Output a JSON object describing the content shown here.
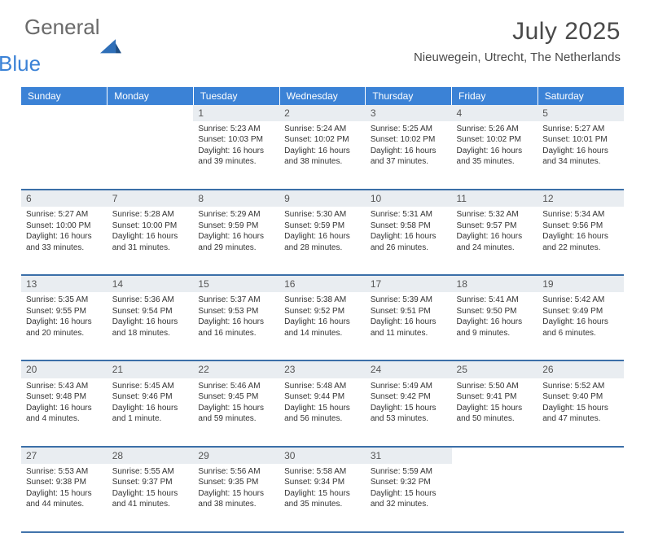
{
  "brand": {
    "word1": "General",
    "word2": "Blue",
    "logo_color": "#2f6fb8"
  },
  "title": "July 2025",
  "location": "Nieuwegein, Utrecht, The Netherlands",
  "colors": {
    "header_bg": "#3b82d6",
    "header_text": "#ffffff",
    "daynum_bg": "#e9edf1",
    "row_border": "#3b6fa8",
    "text": "#333333"
  },
  "weekdays": [
    "Sunday",
    "Monday",
    "Tuesday",
    "Wednesday",
    "Thursday",
    "Friday",
    "Saturday"
  ],
  "weeks": [
    [
      null,
      null,
      {
        "n": "1",
        "sunrise": "5:23 AM",
        "sunset": "10:03 PM",
        "daylight": "16 hours and 39 minutes."
      },
      {
        "n": "2",
        "sunrise": "5:24 AM",
        "sunset": "10:02 PM",
        "daylight": "16 hours and 38 minutes."
      },
      {
        "n": "3",
        "sunrise": "5:25 AM",
        "sunset": "10:02 PM",
        "daylight": "16 hours and 37 minutes."
      },
      {
        "n": "4",
        "sunrise": "5:26 AM",
        "sunset": "10:02 PM",
        "daylight": "16 hours and 35 minutes."
      },
      {
        "n": "5",
        "sunrise": "5:27 AM",
        "sunset": "10:01 PM",
        "daylight": "16 hours and 34 minutes."
      }
    ],
    [
      {
        "n": "6",
        "sunrise": "5:27 AM",
        "sunset": "10:00 PM",
        "daylight": "16 hours and 33 minutes."
      },
      {
        "n": "7",
        "sunrise": "5:28 AM",
        "sunset": "10:00 PM",
        "daylight": "16 hours and 31 minutes."
      },
      {
        "n": "8",
        "sunrise": "5:29 AM",
        "sunset": "9:59 PM",
        "daylight": "16 hours and 29 minutes."
      },
      {
        "n": "9",
        "sunrise": "5:30 AM",
        "sunset": "9:59 PM",
        "daylight": "16 hours and 28 minutes."
      },
      {
        "n": "10",
        "sunrise": "5:31 AM",
        "sunset": "9:58 PM",
        "daylight": "16 hours and 26 minutes."
      },
      {
        "n": "11",
        "sunrise": "5:32 AM",
        "sunset": "9:57 PM",
        "daylight": "16 hours and 24 minutes."
      },
      {
        "n": "12",
        "sunrise": "5:34 AM",
        "sunset": "9:56 PM",
        "daylight": "16 hours and 22 minutes."
      }
    ],
    [
      {
        "n": "13",
        "sunrise": "5:35 AM",
        "sunset": "9:55 PM",
        "daylight": "16 hours and 20 minutes."
      },
      {
        "n": "14",
        "sunrise": "5:36 AM",
        "sunset": "9:54 PM",
        "daylight": "16 hours and 18 minutes."
      },
      {
        "n": "15",
        "sunrise": "5:37 AM",
        "sunset": "9:53 PM",
        "daylight": "16 hours and 16 minutes."
      },
      {
        "n": "16",
        "sunrise": "5:38 AM",
        "sunset": "9:52 PM",
        "daylight": "16 hours and 14 minutes."
      },
      {
        "n": "17",
        "sunrise": "5:39 AM",
        "sunset": "9:51 PM",
        "daylight": "16 hours and 11 minutes."
      },
      {
        "n": "18",
        "sunrise": "5:41 AM",
        "sunset": "9:50 PM",
        "daylight": "16 hours and 9 minutes."
      },
      {
        "n": "19",
        "sunrise": "5:42 AM",
        "sunset": "9:49 PM",
        "daylight": "16 hours and 6 minutes."
      }
    ],
    [
      {
        "n": "20",
        "sunrise": "5:43 AM",
        "sunset": "9:48 PM",
        "daylight": "16 hours and 4 minutes."
      },
      {
        "n": "21",
        "sunrise": "5:45 AM",
        "sunset": "9:46 PM",
        "daylight": "16 hours and 1 minute."
      },
      {
        "n": "22",
        "sunrise": "5:46 AM",
        "sunset": "9:45 PM",
        "daylight": "15 hours and 59 minutes."
      },
      {
        "n": "23",
        "sunrise": "5:48 AM",
        "sunset": "9:44 PM",
        "daylight": "15 hours and 56 minutes."
      },
      {
        "n": "24",
        "sunrise": "5:49 AM",
        "sunset": "9:42 PM",
        "daylight": "15 hours and 53 minutes."
      },
      {
        "n": "25",
        "sunrise": "5:50 AM",
        "sunset": "9:41 PM",
        "daylight": "15 hours and 50 minutes."
      },
      {
        "n": "26",
        "sunrise": "5:52 AM",
        "sunset": "9:40 PM",
        "daylight": "15 hours and 47 minutes."
      }
    ],
    [
      {
        "n": "27",
        "sunrise": "5:53 AM",
        "sunset": "9:38 PM",
        "daylight": "15 hours and 44 minutes."
      },
      {
        "n": "28",
        "sunrise": "5:55 AM",
        "sunset": "9:37 PM",
        "daylight": "15 hours and 41 minutes."
      },
      {
        "n": "29",
        "sunrise": "5:56 AM",
        "sunset": "9:35 PM",
        "daylight": "15 hours and 38 minutes."
      },
      {
        "n": "30",
        "sunrise": "5:58 AM",
        "sunset": "9:34 PM",
        "daylight": "15 hours and 35 minutes."
      },
      {
        "n": "31",
        "sunrise": "5:59 AM",
        "sunset": "9:32 PM",
        "daylight": "15 hours and 32 minutes."
      },
      null,
      null
    ]
  ],
  "labels": {
    "sunrise": "Sunrise:",
    "sunset": "Sunset:",
    "daylight": "Daylight:"
  }
}
